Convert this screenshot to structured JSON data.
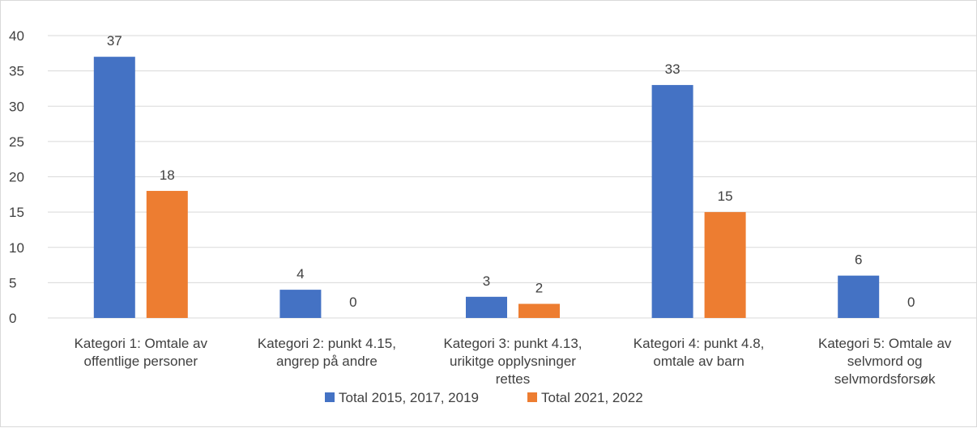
{
  "chart_data": {
    "type": "bar",
    "title": "",
    "xlabel": "",
    "ylabel": "",
    "ylim": [
      0,
      40
    ],
    "ytick_step": 5,
    "yticks": [
      "0",
      "5",
      "10",
      "15",
      "20",
      "25",
      "30",
      "35",
      "40"
    ],
    "grid": true,
    "legend_position": "bottom",
    "categories": [
      [
        "Kategori 1: Omtale av",
        "offentlige personer"
      ],
      [
        "Kategori 2: punkt 4.15,",
        "angrep på andre"
      ],
      [
        "Kategori 3: punkt 4.13,",
        "urikitge opplysninger",
        "rettes"
      ],
      [
        "Kategori 4: punkt 4.8,",
        "omtale av barn"
      ],
      [
        "Kategori 5: Omtale av",
        "selvmord og",
        "selvmordsforsøk"
      ]
    ],
    "series": [
      {
        "name": "Total 2015, 2017, 2019",
        "color": "#4472c4",
        "values": [
          37,
          4,
          3,
          33,
          6
        ]
      },
      {
        "name": "Total 2021, 2022",
        "color": "#ed7d31",
        "values": [
          18,
          0,
          2,
          15,
          0
        ]
      }
    ],
    "grid_color": "#d9d9d9",
    "text_color": "#404040"
  }
}
